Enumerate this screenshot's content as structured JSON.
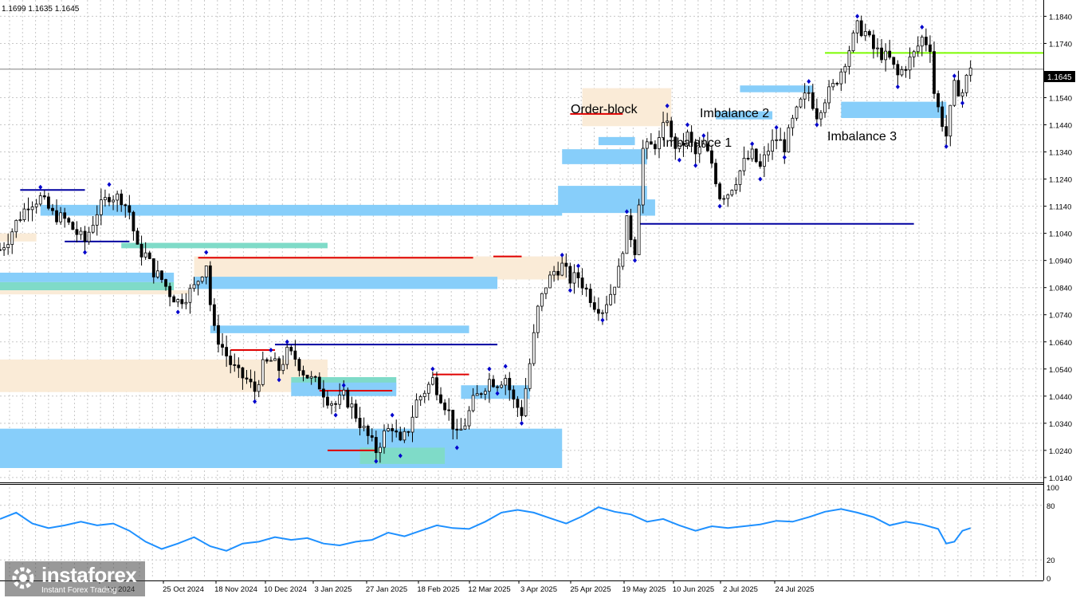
{
  "header": {
    "ohlc_text": "1.1699 1.1635 1.1645"
  },
  "price_axis": {
    "ticks": [
      "1.1840",
      "1.1740",
      "1.1645",
      "1.1540",
      "1.1440",
      "1.1340",
      "1.1240",
      "1.1140",
      "1.1040",
      "1.0940",
      "1.0840",
      "1.0740",
      "1.0640",
      "1.0540",
      "1.0440",
      "1.0340",
      "1.0240",
      "1.0140"
    ],
    "current_price": "1.1645"
  },
  "osc_axis": {
    "ticks": [
      "100",
      "80",
      "20",
      "0"
    ]
  },
  "time_axis": {
    "labels": [
      "Oct 2024",
      "25 Oct 2024",
      "18 Nov 2024",
      "10 Dec 2024",
      "3 Jan 2025",
      "27 Jan 2025",
      "18 Feb 2025",
      "12 Mar 2025",
      "3 Apr 2025",
      "25 Apr 2025",
      "19 May 2025",
      "10 Jun 2025",
      "2 Jul 2025",
      "24 Jul 2025"
    ]
  },
  "annotations": {
    "order_block": "Order-block",
    "imbalance_1": "Imbalance 1",
    "imbalance_2": "Imbalance 2",
    "imbalance_3": "Imbalance 3"
  },
  "watermark": {
    "brand": "instaforex",
    "tagline": "Instant Forex Trading"
  },
  "colors": {
    "background": "#ffffff",
    "grid": "#c8c8c8",
    "candle": "#000000",
    "imbalance_zone": "#87CEFA",
    "order_block_zone": "#FAEBD7",
    "overlap_zone": "#7FDBC8",
    "support_line": "#0000a0",
    "resistance_line": "#e00000",
    "target_line": "#7CFC00",
    "oscillator": "#1E90FF",
    "pivot_marker": "#0000cc"
  },
  "chart_data": {
    "type": "candlestick",
    "symbol_timeframe": "daily",
    "ylim": [
      1.0125,
      1.19
    ],
    "dates": [
      "Oct 2024",
      "25 Oct 2024",
      "18 Nov 2024",
      "10 Dec 2024",
      "3 Jan 2025",
      "27 Jan 2025",
      "18 Feb 2025",
      "12 Mar 2025",
      "3 Apr 2025",
      "25 Apr 2025",
      "19 May 2025",
      "10 Jun 2025",
      "2 Jul 2025",
      "24 Jul 2025"
    ],
    "close_path": [
      [
        0,
        1.098
      ],
      [
        2,
        1.102
      ],
      [
        4,
        1.108
      ],
      [
        7,
        1.115
      ],
      [
        10,
        1.117
      ],
      [
        13,
        1.111
      ],
      [
        16,
        1.109
      ],
      [
        19,
        1.104
      ],
      [
        21,
        1.101
      ],
      [
        24,
        1.112
      ],
      [
        27,
        1.118
      ],
      [
        30,
        1.117
      ],
      [
        32,
        1.112
      ],
      [
        33,
        1.105
      ],
      [
        34,
        1.098
      ],
      [
        36,
        1.096
      ],
      [
        38,
        1.09
      ],
      [
        40,
        1.087
      ],
      [
        42,
        1.082
      ],
      [
        44,
        1.079
      ],
      [
        46,
        1.081
      ],
      [
        48,
        1.084
      ],
      [
        50,
        1.09
      ],
      [
        51,
        1.093
      ],
      [
        52,
        1.078
      ],
      [
        53,
        1.068
      ],
      [
        55,
        1.062
      ],
      [
        57,
        1.056
      ],
      [
        59,
        1.052
      ],
      [
        61,
        1.05
      ],
      [
        63,
        1.046
      ],
      [
        65,
        1.055
      ],
      [
        67,
        1.057
      ],
      [
        69,
        1.054
      ],
      [
        71,
        1.06
      ],
      [
        73,
        1.058
      ],
      [
        75,
        1.053
      ],
      [
        77,
        1.05
      ],
      [
        79,
        1.048
      ],
      [
        81,
        1.043
      ],
      [
        83,
        1.041
      ],
      [
        85,
        1.044
      ],
      [
        87,
        1.04
      ],
      [
        89,
        1.034
      ],
      [
        91,
        1.029
      ],
      [
        93,
        1.024
      ],
      [
        95,
        1.03
      ],
      [
        97,
        1.033
      ],
      [
        99,
        1.026
      ],
      [
        101,
        1.032
      ],
      [
        103,
        1.042
      ],
      [
        105,
        1.046
      ],
      [
        107,
        1.05
      ],
      [
        109,
        1.044
      ],
      [
        111,
        1.038
      ],
      [
        113,
        1.029
      ],
      [
        115,
        1.034
      ],
      [
        117,
        1.042
      ],
      [
        119,
        1.046
      ],
      [
        121,
        1.05
      ],
      [
        123,
        1.049
      ],
      [
        125,
        1.051
      ],
      [
        127,
        1.042
      ],
      [
        129,
        1.038
      ],
      [
        131,
        1.056
      ],
      [
        133,
        1.076
      ],
      [
        135,
        1.085
      ],
      [
        137,
        1.09
      ],
      [
        139,
        1.092
      ],
      [
        141,
        1.087
      ],
      [
        143,
        1.088
      ],
      [
        145,
        1.083
      ],
      [
        147,
        1.078
      ],
      [
        149,
        1.076
      ],
      [
        151,
        1.082
      ],
      [
        153,
        1.09
      ],
      [
        155,
        1.108
      ],
      [
        157,
        1.098
      ],
      [
        159,
        1.135
      ],
      [
        161,
        1.136
      ],
      [
        163,
        1.138
      ],
      [
        165,
        1.147
      ],
      [
        166,
        1.138
      ],
      [
        168,
        1.135
      ],
      [
        170,
        1.14
      ],
      [
        172,
        1.133
      ],
      [
        174,
        1.136
      ],
      [
        176,
        1.13
      ],
      [
        178,
        1.118
      ],
      [
        180,
        1.119
      ],
      [
        182,
        1.124
      ],
      [
        184,
        1.13
      ],
      [
        186,
        1.133
      ],
      [
        188,
        1.128
      ],
      [
        190,
        1.135
      ],
      [
        192,
        1.139
      ],
      [
        194,
        1.136
      ],
      [
        196,
        1.145
      ],
      [
        198,
        1.152
      ],
      [
        200,
        1.156
      ],
      [
        202,
        1.148
      ],
      [
        204,
        1.154
      ],
      [
        206,
        1.158
      ],
      [
        208,
        1.164
      ],
      [
        210,
        1.172
      ],
      [
        212,
        1.18
      ],
      [
        214,
        1.178
      ],
      [
        216,
        1.172
      ],
      [
        218,
        1.17
      ],
      [
        220,
        1.168
      ],
      [
        222,
        1.162
      ],
      [
        224,
        1.166
      ],
      [
        226,
        1.17
      ],
      [
        228,
        1.176
      ],
      [
        230,
        1.173
      ],
      [
        231,
        1.156
      ],
      [
        232,
        1.15
      ],
      [
        234,
        1.14
      ],
      [
        236,
        1.158
      ],
      [
        238,
        1.156
      ],
      [
        240,
        1.166
      ]
    ],
    "zones": [
      {
        "kind": "imbalance",
        "t0": 0,
        "t1": 139,
        "y0": 1.032,
        "y1": 1.0175
      },
      {
        "kind": "order_block",
        "t0": 0,
        "t1": 81,
        "y0": 1.0575,
        "y1": 1.0455
      },
      {
        "kind": "imbalance",
        "t0": 0,
        "t1": 43,
        "y0": 1.0895,
        "y1": 1.086
      },
      {
        "kind": "overlap",
        "t0": 0,
        "t1": 43,
        "y0": 1.086,
        "y1": 1.083
      },
      {
        "kind": "order_block",
        "t0": 0,
        "t1": 47,
        "y0": 1.083,
        "y1": 1.0815
      },
      {
        "kind": "imbalance",
        "t0": 10,
        "t1": 139,
        "y0": 1.1145,
        "y1": 1.1105
      },
      {
        "kind": "order_block",
        "t0": 0,
        "t1": 9,
        "y0": 1.104,
        "y1": 1.101
      },
      {
        "kind": "overlap",
        "t0": 30,
        "t1": 81,
        "y0": 1.1005,
        "y1": 1.0985
      },
      {
        "kind": "order_block",
        "t0": 48,
        "t1": 140,
        "y0": 1.0955,
        "y1": 1.087
      },
      {
        "kind": "imbalance",
        "t0": 48,
        "t1": 123,
        "y0": 1.088,
        "y1": 1.0835
      },
      {
        "kind": "imbalance",
        "t0": 52,
        "t1": 116,
        "y0": 1.07,
        "y1": 1.0672
      },
      {
        "kind": "overlap",
        "t0": 72,
        "t1": 98,
        "y0": 1.051,
        "y1": 1.0465
      },
      {
        "kind": "imbalance",
        "t0": 72,
        "t1": 98,
        "y0": 1.049,
        "y1": 1.044
      },
      {
        "kind": "imbalance",
        "t0": 114,
        "t1": 131,
        "y0": 1.048,
        "y1": 1.043
      },
      {
        "kind": "overlap",
        "t0": 89,
        "t1": 110,
        "y0": 1.025,
        "y1": 1.019
      },
      {
        "kind": "imbalance",
        "t0": 138,
        "t1": 160,
        "y0": 1.1215,
        "y1": 1.1115
      },
      {
        "kind": "imbalance",
        "t0": 139,
        "t1": 160,
        "y0": 1.135,
        "y1": 1.1295
      },
      {
        "kind": "imbalance",
        "t0": 148,
        "t1": 157,
        "y0": 1.1395,
        "y1": 1.1365
      },
      {
        "kind": "order_block",
        "t0": 144,
        "t1": 166,
        "y0": 1.1575,
        "y1": 1.1435
      },
      {
        "kind": "imbalance",
        "t0": 158,
        "t1": 162,
        "y0": 1.1165,
        "y1": 1.1105
      },
      {
        "kind": "imbalance",
        "t0": 177,
        "t1": 191,
        "y0": 1.149,
        "y1": 1.146
      },
      {
        "kind": "imbalance",
        "t0": 183,
        "t1": 201,
        "y0": 1.1585,
        "y1": 1.156
      },
      {
        "kind": "imbalance",
        "t0": 208,
        "t1": 234,
        "y0": 1.1525,
        "y1": 1.1465
      }
    ],
    "horizontal_lines": [
      {
        "kind": "target",
        "t0": 204,
        "t1": 258,
        "y": 1.1705
      },
      {
        "kind": "support",
        "t0": 158,
        "t1": 226,
        "y": 1.1075
      },
      {
        "kind": "support",
        "t0": 68,
        "t1": 123,
        "y": 1.063
      },
      {
        "kind": "support",
        "t0": 16,
        "t1": 32,
        "y": 1.101
      },
      {
        "kind": "support",
        "t0": 5,
        "t1": 21,
        "y": 1.12
      },
      {
        "kind": "resistance",
        "t0": 49,
        "t1": 117,
        "y": 1.095
      },
      {
        "kind": "resistance",
        "t0": 57,
        "t1": 68,
        "y": 1.061
      },
      {
        "kind": "resistance",
        "t0": 79,
        "t1": 97,
        "y": 1.046
      },
      {
        "kind": "resistance",
        "t0": 107,
        "t1": 116,
        "y": 1.052
      },
      {
        "kind": "resistance",
        "t0": 81,
        "t1": 93,
        "y": 1.024
      },
      {
        "kind": "resistance",
        "t0": 122,
        "t1": 129,
        "y": 1.0955
      },
      {
        "kind": "resistance",
        "t0": 141,
        "t1": 154,
        "y": 1.148
      }
    ],
    "oscillator": {
      "ylim": [
        0,
        100
      ],
      "values": [
        [
          0,
          65
        ],
        [
          4,
          72
        ],
        [
          8,
          60
        ],
        [
          12,
          55
        ],
        [
          16,
          58
        ],
        [
          20,
          62
        ],
        [
          24,
          58
        ],
        [
          28,
          60
        ],
        [
          32,
          52
        ],
        [
          36,
          40
        ],
        [
          40,
          32
        ],
        [
          44,
          38
        ],
        [
          48,
          45
        ],
        [
          52,
          35
        ],
        [
          56,
          30
        ],
        [
          60,
          38
        ],
        [
          64,
          40
        ],
        [
          68,
          45
        ],
        [
          72,
          42
        ],
        [
          76,
          44
        ],
        [
          80,
          38
        ],
        [
          84,
          36
        ],
        [
          88,
          40
        ],
        [
          92,
          42
        ],
        [
          96,
          50
        ],
        [
          100,
          46
        ],
        [
          104,
          52
        ],
        [
          108,
          58
        ],
        [
          112,
          55
        ],
        [
          116,
          54
        ],
        [
          120,
          62
        ],
        [
          124,
          72
        ],
        [
          128,
          75
        ],
        [
          132,
          72
        ],
        [
          136,
          66
        ],
        [
          140,
          60
        ],
        [
          144,
          68
        ],
        [
          148,
          78
        ],
        [
          152,
          73
        ],
        [
          156,
          70
        ],
        [
          160,
          62
        ],
        [
          164,
          65
        ],
        [
          168,
          58
        ],
        [
          172,
          52
        ],
        [
          176,
          57
        ],
        [
          180,
          55
        ],
        [
          184,
          57
        ],
        [
          188,
          59
        ],
        [
          192,
          63
        ],
        [
          196,
          62
        ],
        [
          200,
          67
        ],
        [
          204,
          73
        ],
        [
          208,
          76
        ],
        [
          212,
          72
        ],
        [
          216,
          67
        ],
        [
          220,
          58
        ],
        [
          224,
          62
        ],
        [
          228,
          59
        ],
        [
          232,
          54
        ],
        [
          234,
          38
        ],
        [
          236,
          40
        ],
        [
          238,
          52
        ],
        [
          240,
          55
        ]
      ]
    }
  }
}
